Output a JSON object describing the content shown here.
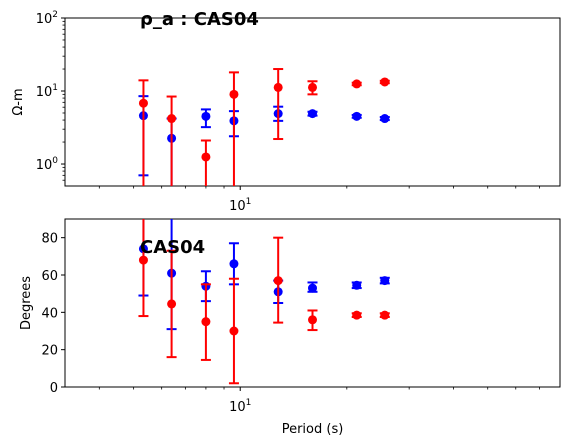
{
  "chart_data": [
    {
      "type": "scatter",
      "title": "ρ_a : CAS04",
      "xlabel": "",
      "ylabel": "Ω-m",
      "xscale": "log",
      "yscale": "log",
      "xlim": [
        3.2,
        80
      ],
      "ylim": [
        0.5,
        100
      ],
      "x_ticks": [
        {
          "value": 10,
          "label": "10",
          "sup": "1"
        }
      ],
      "y_ticks": [
        {
          "value": 1,
          "label": "10",
          "sup": "0"
        },
        {
          "value": 10,
          "label": "10",
          "sup": "1"
        },
        {
          "value": 100,
          "label": "10",
          "sup": "2"
        }
      ],
      "series": [
        {
          "color": "#0000ff",
          "points": [
            {
              "x": 5.33,
              "y": 4.6,
              "lo": 0.7,
              "hi": 8.5
            },
            {
              "x": 6.4,
              "y": 2.25,
              "lo": 0.3,
              "hi": 4.2
            },
            {
              "x": 8.0,
              "y": 4.5,
              "lo": 3.2,
              "hi": 5.6
            },
            {
              "x": 9.6,
              "y": 3.9,
              "lo": 2.4,
              "hi": 5.3
            },
            {
              "x": 12.8,
              "y": 4.9,
              "lo": 3.9,
              "hi": 6.1
            },
            {
              "x": 16.0,
              "y": 4.9,
              "lo": 4.6,
              "hi": 5.2
            },
            {
              "x": 21.33,
              "y": 4.5,
              "lo": 4.3,
              "hi": 4.7
            },
            {
              "x": 25.6,
              "y": 4.2,
              "lo": 4.0,
              "hi": 4.4
            }
          ]
        },
        {
          "color": "#ff0000",
          "points": [
            {
              "x": 5.33,
              "y": 6.8,
              "lo": 0.3,
              "hi": 14.0
            },
            {
              "x": 6.4,
              "y": 4.2,
              "lo": 0.3,
              "hi": 8.4
            },
            {
              "x": 8.0,
              "y": 1.25,
              "lo": 0.3,
              "hi": 2.1
            },
            {
              "x": 9.6,
              "y": 9.0,
              "lo": 0.3,
              "hi": 18.0
            },
            {
              "x": 12.8,
              "y": 11.2,
              "lo": 2.2,
              "hi": 20.0
            },
            {
              "x": 16.0,
              "y": 11.2,
              "lo": 9.0,
              "hi": 13.6
            },
            {
              "x": 21.33,
              "y": 12.5,
              "lo": 12.0,
              "hi": 13.0
            },
            {
              "x": 25.6,
              "y": 13.3,
              "lo": 12.8,
              "hi": 13.8
            }
          ]
        }
      ]
    },
    {
      "type": "scatter",
      "title": "CAS04",
      "xlabel": "Period (s)",
      "ylabel": "Degrees",
      "xscale": "log",
      "yscale": "linear",
      "xlim": [
        3.2,
        80
      ],
      "ylim": [
        0,
        90
      ],
      "x_ticks": [
        {
          "value": 10,
          "label": "10",
          "sup": "1"
        }
      ],
      "y_ticks": [
        {
          "value": 0,
          "label": "0"
        },
        {
          "value": 20,
          "label": "20"
        },
        {
          "value": 40,
          "label": "40"
        },
        {
          "value": 60,
          "label": "60"
        },
        {
          "value": 80,
          "label": "80"
        }
      ],
      "series": [
        {
          "color": "#0000ff",
          "points": [
            {
              "x": 5.33,
              "y": 74,
              "lo": 49,
              "hi": 99
            },
            {
              "x": 6.4,
              "y": 61,
              "lo": 31,
              "hi": 91
            },
            {
              "x": 8.0,
              "y": 54,
              "lo": 46,
              "hi": 62
            },
            {
              "x": 9.6,
              "y": 66,
              "lo": 55,
              "hi": 77
            },
            {
              "x": 12.8,
              "y": 51,
              "lo": 45,
              "hi": 57
            },
            {
              "x": 16.0,
              "y": 53,
              "lo": 51,
              "hi": 56
            },
            {
              "x": 21.33,
              "y": 54.5,
              "lo": 53,
              "hi": 56
            },
            {
              "x": 25.6,
              "y": 57,
              "lo": 55.5,
              "hi": 58.5
            }
          ]
        },
        {
          "color": "#ff0000",
          "points": [
            {
              "x": 5.33,
              "y": 68,
              "lo": 38,
              "hi": 98
            },
            {
              "x": 6.4,
              "y": 44.5,
              "lo": 16,
              "hi": 73
            },
            {
              "x": 8.0,
              "y": 35,
              "lo": 14.5,
              "hi": 55
            },
            {
              "x": 9.6,
              "y": 30,
              "lo": 2,
              "hi": 58
            },
            {
              "x": 12.8,
              "y": 57,
              "lo": 34.5,
              "hi": 80
            },
            {
              "x": 16.0,
              "y": 36,
              "lo": 30.5,
              "hi": 41
            },
            {
              "x": 21.33,
              "y": 38.5,
              "lo": 37.5,
              "hi": 39.5
            },
            {
              "x": 25.6,
              "y": 38.5,
              "lo": 37.5,
              "hi": 39.5
            }
          ]
        }
      ]
    }
  ]
}
